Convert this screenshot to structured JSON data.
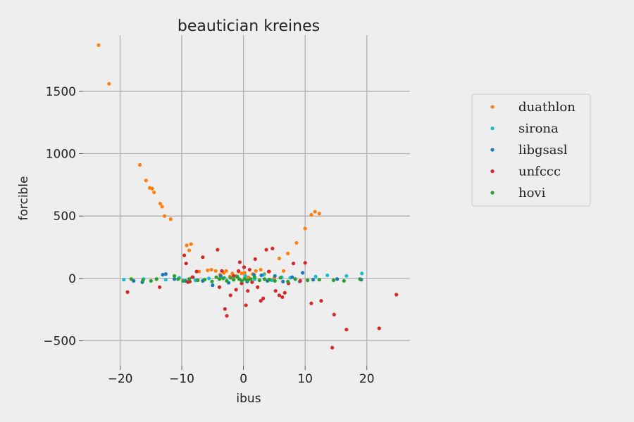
{
  "chart_data": {
    "type": "scatter",
    "title": "beautician kreines",
    "xlabel": "ibus",
    "ylabel": "forcible",
    "xlim": [
      -26,
      27
    ],
    "ylim": [
      -700,
      1950
    ],
    "xticks": [
      -20,
      -10,
      0,
      10,
      20
    ],
    "xtick_labels": [
      "−20",
      "−10",
      "0",
      "10",
      "20"
    ],
    "yticks": [
      -500,
      0,
      500,
      1000,
      1500
    ],
    "ytick_labels": [
      "−500",
      "0",
      "500",
      "1000",
      "1500"
    ],
    "grid": true,
    "legend_position": "right",
    "series": [
      {
        "name": "duathlon",
        "color": "#ff7f0e",
        "points": [
          [
            -23.5,
            1870
          ],
          [
            -21.8,
            1560
          ],
          [
            -16.8,
            910
          ],
          [
            -15.8,
            785
          ],
          [
            -15.2,
            725
          ],
          [
            -14.8,
            720
          ],
          [
            -14.5,
            690
          ],
          [
            -13.5,
            600
          ],
          [
            -13.2,
            575
          ],
          [
            -12.8,
            500
          ],
          [
            -11.8,
            475
          ],
          [
            -9.2,
            265
          ],
          [
            -8.8,
            225
          ],
          [
            -8.5,
            275
          ],
          [
            -7.2,
            55
          ],
          [
            -5.8,
            65
          ],
          [
            -5.2,
            70
          ],
          [
            -4.5,
            60
          ],
          [
            -3.8,
            30
          ],
          [
            -3.2,
            45
          ],
          [
            -2.8,
            60
          ],
          [
            -2.2,
            15
          ],
          [
            -1.8,
            40
          ],
          [
            -1.2,
            20
          ],
          [
            -0.8,
            55
          ],
          [
            -0.3,
            40
          ],
          [
            0.2,
            45
          ],
          [
            0.8,
            10
          ],
          [
            1.5,
            35
          ],
          [
            2.0,
            60
          ],
          [
            2.8,
            70
          ],
          [
            3.4,
            35
          ],
          [
            4.2,
            55
          ],
          [
            5.0,
            5
          ],
          [
            5.8,
            160
          ],
          [
            6.5,
            60
          ],
          [
            7.2,
            200
          ],
          [
            8.6,
            285
          ],
          [
            10.0,
            400
          ],
          [
            11.0,
            510
          ],
          [
            11.6,
            535
          ],
          [
            12.3,
            520
          ]
        ]
      },
      {
        "name": "sirona",
        "color": "#17becf",
        "points": [
          [
            -19.4,
            -10
          ],
          [
            -16.2,
            -5
          ],
          [
            -12.6,
            -10
          ],
          [
            -10.4,
            5
          ],
          [
            -7.8,
            -15
          ],
          [
            -5.6,
            0
          ],
          [
            -3.1,
            5
          ],
          [
            -1.6,
            -10
          ],
          [
            0.3,
            20
          ],
          [
            1.8,
            -5
          ],
          [
            3.3,
            30
          ],
          [
            4.6,
            -15
          ],
          [
            6.2,
            10
          ],
          [
            7.6,
            5
          ],
          [
            9.1,
            -25
          ],
          [
            11.7,
            15
          ],
          [
            13.6,
            25
          ],
          [
            16.7,
            20
          ],
          [
            19.2,
            40
          ]
        ]
      },
      {
        "name": "libgsasl",
        "color": "#1f77b4",
        "points": [
          [
            -17.8,
            -20
          ],
          [
            -16.4,
            -30
          ],
          [
            -13.1,
            30
          ],
          [
            -12.6,
            35
          ],
          [
            -11.2,
            -5
          ],
          [
            -9.4,
            -20
          ],
          [
            -8.2,
            10
          ],
          [
            -6.6,
            -20
          ],
          [
            -5.0,
            -55
          ],
          [
            -3.7,
            20
          ],
          [
            -2.4,
            -35
          ],
          [
            -1.0,
            15
          ],
          [
            0.6,
            -25
          ],
          [
            1.7,
            30
          ],
          [
            2.9,
            25
          ],
          [
            3.9,
            -20
          ],
          [
            5.1,
            20
          ],
          [
            6.4,
            -25
          ],
          [
            7.9,
            10
          ],
          [
            9.6,
            45
          ],
          [
            11.3,
            -10
          ],
          [
            15.2,
            -5
          ],
          [
            19.1,
            -10
          ]
        ]
      },
      {
        "name": "unfccc",
        "color": "#d62728",
        "points": [
          [
            -18.8,
            -110
          ],
          [
            -13.6,
            -70
          ],
          [
            -9.6,
            185
          ],
          [
            -9.3,
            120
          ],
          [
            -9.0,
            -30
          ],
          [
            -8.7,
            -25
          ],
          [
            -8.3,
            10
          ],
          [
            -7.6,
            55
          ],
          [
            -6.6,
            170
          ],
          [
            -4.2,
            230
          ],
          [
            -3.9,
            -70
          ],
          [
            -3.5,
            60
          ],
          [
            -3.0,
            -245
          ],
          [
            -2.7,
            -300
          ],
          [
            -2.1,
            -135
          ],
          [
            -1.6,
            20
          ],
          [
            -1.2,
            -90
          ],
          [
            -0.8,
            60
          ],
          [
            -0.6,
            130
          ],
          [
            -0.3,
            -40
          ],
          [
            0.1,
            90
          ],
          [
            0.4,
            -215
          ],
          [
            0.7,
            -100
          ],
          [
            1.0,
            70
          ],
          [
            1.4,
            -30
          ],
          [
            1.9,
            155
          ],
          [
            2.3,
            -70
          ],
          [
            2.8,
            -180
          ],
          [
            3.2,
            -160
          ],
          [
            3.7,
            230
          ],
          [
            4.1,
            55
          ],
          [
            4.7,
            240
          ],
          [
            5.2,
            -100
          ],
          [
            5.8,
            -135
          ],
          [
            6.3,
            -150
          ],
          [
            6.7,
            -115
          ],
          [
            7.3,
            -40
          ],
          [
            8.1,
            120
          ],
          [
            9.2,
            -20
          ],
          [
            10.0,
            125
          ],
          [
            11.0,
            -200
          ],
          [
            12.6,
            -180
          ],
          [
            14.7,
            -290
          ],
          [
            14.4,
            -555
          ],
          [
            16.7,
            -410
          ],
          [
            22.0,
            -400
          ],
          [
            24.8,
            -130
          ]
        ]
      },
      {
        "name": "hovi",
        "color": "#2ca02c",
        "points": [
          [
            -18.2,
            -5
          ],
          [
            -16.3,
            -15
          ],
          [
            -15.0,
            -20
          ],
          [
            -14.1,
            -5
          ],
          [
            -11.2,
            20
          ],
          [
            -10.6,
            -5
          ],
          [
            -9.8,
            -20
          ],
          [
            -8.8,
            -5
          ],
          [
            -7.4,
            -15
          ],
          [
            -6.3,
            -10
          ],
          [
            -5.1,
            -25
          ],
          [
            -4.4,
            10
          ],
          [
            -3.9,
            -5
          ],
          [
            -3.3,
            0
          ],
          [
            -2.7,
            -20
          ],
          [
            -2.1,
            5
          ],
          [
            -1.6,
            -10
          ],
          [
            -1.1,
            15
          ],
          [
            -0.7,
            -5
          ],
          [
            -0.3,
            -20
          ],
          [
            0.2,
            -5
          ],
          [
            0.7,
            -15
          ],
          [
            1.2,
            -5
          ],
          [
            1.8,
            10
          ],
          [
            2.6,
            -15
          ],
          [
            3.4,
            -5
          ],
          [
            4.2,
            -10
          ],
          [
            5.1,
            -20
          ],
          [
            6.0,
            5
          ],
          [
            7.2,
            -25
          ],
          [
            8.4,
            -5
          ],
          [
            10.4,
            -15
          ],
          [
            12.3,
            -10
          ],
          [
            14.6,
            -15
          ],
          [
            16.3,
            -20
          ],
          [
            18.9,
            -5
          ]
        ]
      }
    ]
  }
}
